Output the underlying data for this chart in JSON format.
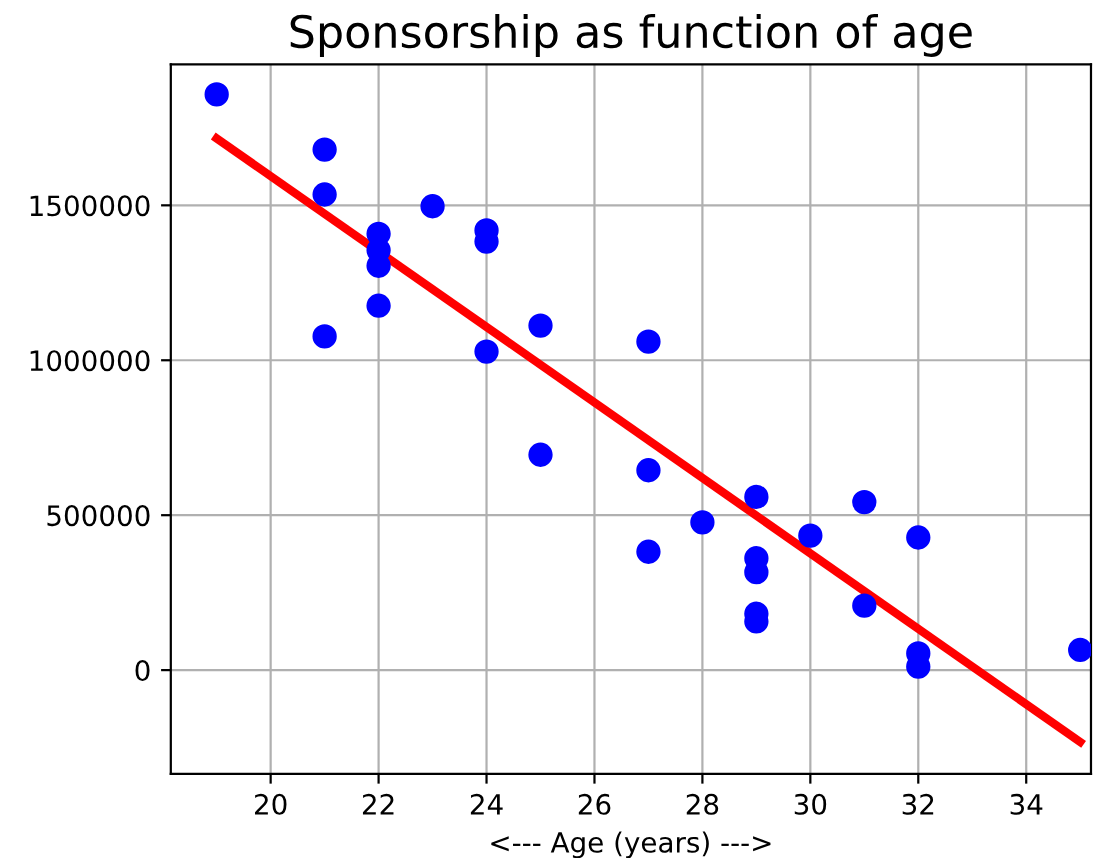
{
  "chart_data": {
    "type": "scatter",
    "title": "Sponsorship as function of age",
    "xlabel": "<--- Age (years) --->",
    "xlim": [
      18.15,
      35.2
    ],
    "ylim": [
      -335000,
      1955000
    ],
    "xticks": [
      20,
      22,
      24,
      26,
      28,
      30,
      32,
      34
    ],
    "yticks": [
      0,
      500000,
      1000000,
      1500000
    ],
    "grid": true,
    "series": [
      {
        "marker": "circle",
        "color": "#0000ff",
        "x": [
          19,
          21,
          21,
          21,
          22,
          22,
          22,
          22,
          23,
          24,
          24,
          24,
          25,
          25,
          27,
          27,
          27,
          28,
          29,
          29,
          29,
          29,
          29,
          30,
          31,
          31,
          32,
          32,
          32,
          35
        ],
        "values": [
          1858000,
          1680000,
          1535000,
          1077000,
          1408000,
          1355000,
          1305000,
          1176000,
          1497000,
          1419000,
          1383000,
          1028000,
          1112000,
          695000,
          1060000,
          645000,
          382000,
          477000,
          559000,
          361000,
          316000,
          182000,
          157000,
          434000,
          542000,
          208000,
          428000,
          54000,
          11000,
          65000
        ]
      },
      {
        "type": "line",
        "color": "#ff0000",
        "x": [
          19,
          35
        ],
        "values": [
          1716000,
          -232000
        ]
      }
    ]
  }
}
